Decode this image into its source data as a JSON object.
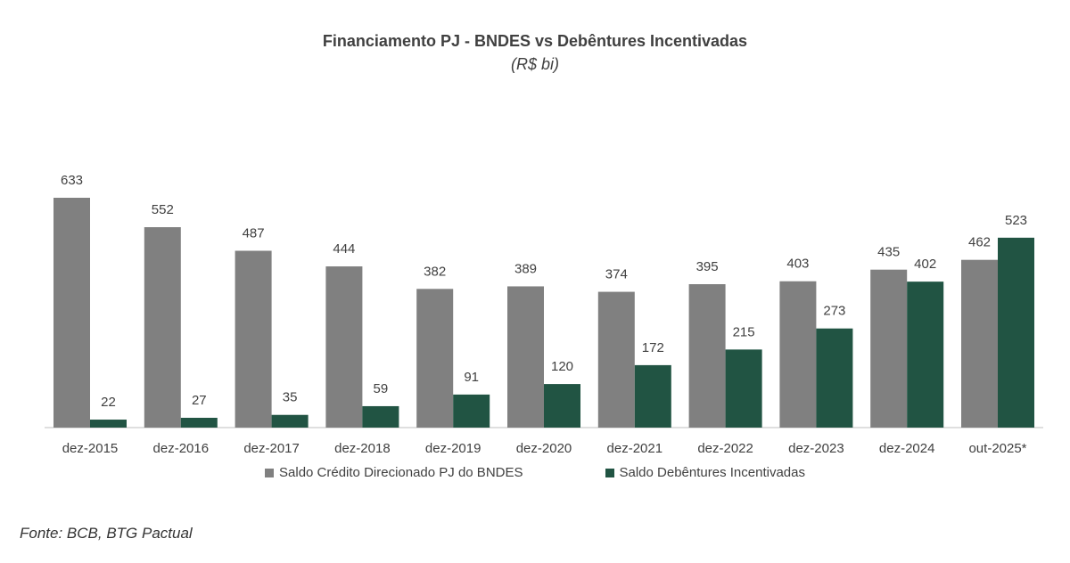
{
  "chart_data": {
    "type": "bar",
    "title": "Financiamento PJ - BNDES vs Debêntures Incentivadas",
    "subtitle": "(R$ bi)",
    "categories": [
      "dez-2015",
      "dez-2016",
      "dez-2017",
      "dez-2018",
      "dez-2019",
      "dez-2020",
      "dez-2021",
      "dez-2022",
      "dez-2023",
      "dez-2024",
      "out-2025*"
    ],
    "series": [
      {
        "name": "Saldo Crédito Direcionado PJ do BNDES",
        "color": "#808080",
        "values": [
          633,
          552,
          487,
          444,
          382,
          389,
          374,
          395,
          403,
          435,
          462
        ]
      },
      {
        "name": "Saldo Debêntures Incentivadas",
        "color": "#215443",
        "values": [
          22,
          27,
          35,
          59,
          91,
          120,
          172,
          215,
          273,
          402,
          523
        ]
      }
    ],
    "ylim": [
      0,
      633
    ],
    "grid": false,
    "legend_position": "bottom",
    "data_labels": true
  },
  "source": "Fonte: BCB, BTG Pactual"
}
